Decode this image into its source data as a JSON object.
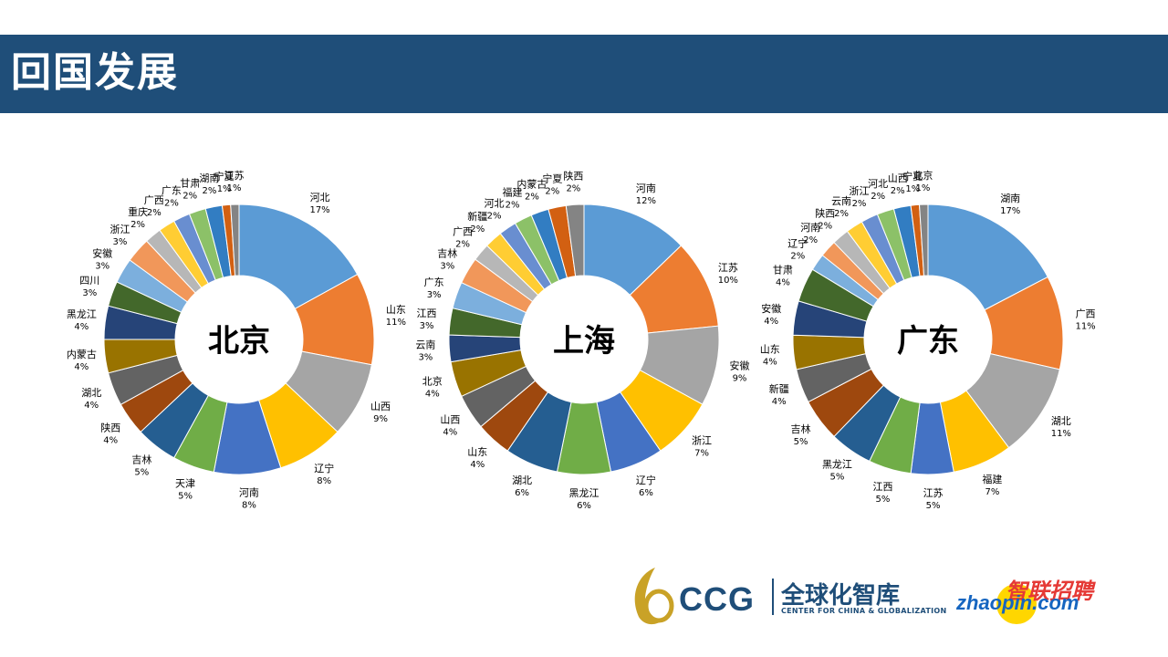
{
  "page": {
    "title": "回国发展"
  },
  "footer": {
    "ccg_mark": "CCG",
    "ccg_cn": "全球化智库",
    "ccg_en": "CENTER FOR CHINA & GLOBALIZATION",
    "zhaopin_cn": "智联招聘",
    "zhaopin_en": "zhaopin.com"
  },
  "chart_data": [
    {
      "type": "pie",
      "donut": true,
      "title": "北京",
      "slices": [
        {
          "label": "河北",
          "value": 17,
          "color": "#5b9bd5"
        },
        {
          "label": "山东",
          "value": 11,
          "color": "#ed7d31"
        },
        {
          "label": "山西",
          "value": 9,
          "color": "#a5a5a5"
        },
        {
          "label": "辽宁",
          "value": 8,
          "color": "#ffc000"
        },
        {
          "label": "河南",
          "value": 8,
          "color": "#4472c4"
        },
        {
          "label": "天津",
          "value": 5,
          "color": "#70ad47"
        },
        {
          "label": "吉林",
          "value": 5,
          "color": "#255e91"
        },
        {
          "label": "陕西",
          "value": 4,
          "color": "#9e480e"
        },
        {
          "label": "湖北",
          "value": 4,
          "color": "#636363"
        },
        {
          "label": "内蒙古",
          "value": 4,
          "color": "#997300"
        },
        {
          "label": "黑龙江",
          "value": 4,
          "color": "#264478"
        },
        {
          "label": "四川",
          "value": 3,
          "color": "#43682b"
        },
        {
          "label": "安徽",
          "value": 3,
          "color": "#7cafdd"
        },
        {
          "label": "浙江",
          "value": 3,
          "color": "#f1975a"
        },
        {
          "label": "重庆",
          "value": 2,
          "color": "#b7b7b7"
        },
        {
          "label": "广西",
          "value": 2,
          "color": "#ffcd33"
        },
        {
          "label": "广东",
          "value": 2,
          "color": "#698ed0"
        },
        {
          "label": "甘肃",
          "value": 2,
          "color": "#8cc168"
        },
        {
          "label": "湖南",
          "value": 2,
          "color": "#327dc2"
        },
        {
          "label": "宁夏",
          "value": 1,
          "color": "#d26012"
        },
        {
          "label": "江苏",
          "value": 1,
          "color": "#848484"
        }
      ]
    },
    {
      "type": "pie",
      "donut": true,
      "title": "上海",
      "slices": [
        {
          "label": "河南",
          "value": 12,
          "color": "#5b9bd5"
        },
        {
          "label": "江苏",
          "value": 10,
          "color": "#ed7d31"
        },
        {
          "label": "安徽",
          "value": 9,
          "color": "#a5a5a5"
        },
        {
          "label": "浙江",
          "value": 7,
          "color": "#ffc000"
        },
        {
          "label": "辽宁",
          "value": 6,
          "color": "#4472c4"
        },
        {
          "label": "黑龙江",
          "value": 6,
          "color": "#70ad47"
        },
        {
          "label": "湖北",
          "value": 6,
          "color": "#255e91"
        },
        {
          "label": "山东",
          "value": 4,
          "color": "#9e480e"
        },
        {
          "label": "山西",
          "value": 4,
          "color": "#636363"
        },
        {
          "label": "北京",
          "value": 4,
          "color": "#997300"
        },
        {
          "label": "云南",
          "value": 3,
          "color": "#264478"
        },
        {
          "label": "江西",
          "value": 3,
          "color": "#43682b"
        },
        {
          "label": "广东",
          "value": 3,
          "color": "#7cafdd"
        },
        {
          "label": "吉林",
          "value": 3,
          "color": "#f1975a"
        },
        {
          "label": "广西",
          "value": 2,
          "color": "#b7b7b7"
        },
        {
          "label": "新疆",
          "value": 2,
          "color": "#ffcd33"
        },
        {
          "label": "河北",
          "value": 2,
          "color": "#698ed0"
        },
        {
          "label": "福建",
          "value": 2,
          "color": "#8cc168"
        },
        {
          "label": "内蒙古",
          "value": 2,
          "color": "#327dc2"
        },
        {
          "label": "宁夏",
          "value": 2,
          "color": "#d26012"
        },
        {
          "label": "陕西",
          "value": 2,
          "color": "#848484"
        }
      ]
    },
    {
      "type": "pie",
      "donut": true,
      "title": "广东",
      "slices": [
        {
          "label": "湖南",
          "value": 17,
          "color": "#5b9bd5"
        },
        {
          "label": "广西",
          "value": 11,
          "color": "#ed7d31"
        },
        {
          "label": "湖北",
          "value": 11,
          "color": "#a5a5a5"
        },
        {
          "label": "福建",
          "value": 7,
          "color": "#ffc000"
        },
        {
          "label": "江苏",
          "value": 5,
          "color": "#4472c4"
        },
        {
          "label": "江西",
          "value": 5,
          "color": "#70ad47"
        },
        {
          "label": "黑龙江",
          "value": 5,
          "color": "#255e91"
        },
        {
          "label": "吉林",
          "value": 5,
          "color": "#9e480e"
        },
        {
          "label": "新疆",
          "value": 4,
          "color": "#636363"
        },
        {
          "label": "山东",
          "value": 4,
          "color": "#997300"
        },
        {
          "label": "安徽",
          "value": 4,
          "color": "#264478"
        },
        {
          "label": "甘肃",
          "value": 4,
          "color": "#43682b"
        },
        {
          "label": "辽宁",
          "value": 2,
          "color": "#7cafdd"
        },
        {
          "label": "河南",
          "value": 2,
          "color": "#f1975a"
        },
        {
          "label": "陕西",
          "value": 2,
          "color": "#b7b7b7"
        },
        {
          "label": "云南",
          "value": 2,
          "color": "#ffcd33"
        },
        {
          "label": "浙江",
          "value": 2,
          "color": "#698ed0"
        },
        {
          "label": "河北",
          "value": 2,
          "color": "#8cc168"
        },
        {
          "label": "山西",
          "value": 2,
          "color": "#327dc2"
        },
        {
          "label": "宁夏",
          "value": 1,
          "color": "#d26012"
        },
        {
          "label": "北京",
          "value": 1,
          "color": "#848484"
        }
      ]
    }
  ]
}
